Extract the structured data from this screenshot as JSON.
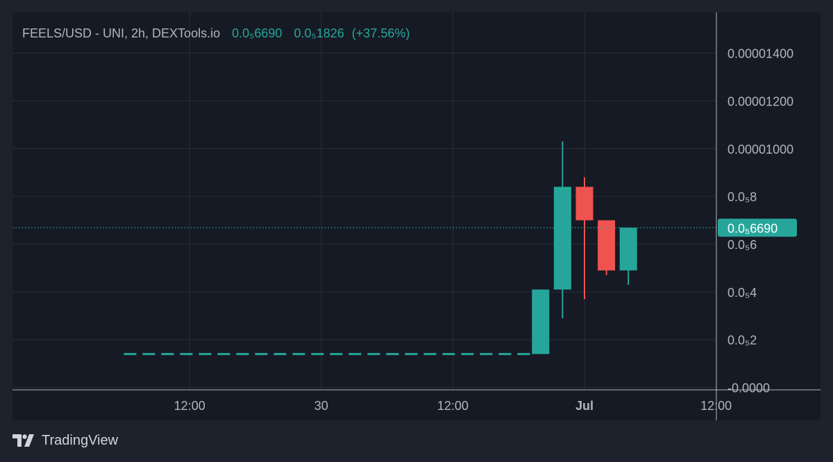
{
  "header": {
    "symbol": "FEELS/USD - UNI, 2h, DEXTools.io",
    "last_price": "0.0₅6690",
    "change_abs": "0.0₅1826",
    "change_pct": "(+37.56%)"
  },
  "brand": {
    "label": "TradingView"
  },
  "colors": {
    "background": "#1e222d",
    "plot_background": "#161a25",
    "grid": "#2a2e39",
    "text": "#b2b5be",
    "up": "#26a69a",
    "down": "#ef5350",
    "axis_border": "#b2b5be"
  },
  "chart_data": {
    "type": "candlestick",
    "interval": "2h",
    "y_range": [
      -1e-07,
      1.57e-05
    ],
    "y_ticks": [
      {
        "value": 1.4e-05,
        "label": "0.00001400"
      },
      {
        "value": 1.2e-05,
        "label": "0.00001200"
      },
      {
        "value": 1e-05,
        "label": "0.00001000"
      },
      {
        "value": 8e-06,
        "label": "0.0₅8"
      },
      {
        "value": 6e-06,
        "label": "0.0₅6"
      },
      {
        "value": 4e-06,
        "label": "0.0₅4"
      },
      {
        "value": 2e-06,
        "label": "0.0₅2"
      },
      {
        "value": 0,
        "label": "-0.0000"
      }
    ],
    "x_ticks": [
      {
        "bar": -26,
        "label": "12:00",
        "bold": false
      },
      {
        "bar": -14,
        "label": "30",
        "bold": false
      },
      {
        "bar": -2,
        "label": "12:00",
        "bold": false
      },
      {
        "bar": 10,
        "label": "Jul",
        "bold": true
      },
      {
        "bar": 22,
        "label": "12:00",
        "bold": false
      }
    ],
    "flat_line": {
      "from_bar": -32,
      "to_bar": 5.5,
      "value": 1.4e-06
    },
    "candles": [
      {
        "bar": 6,
        "open": 1.4e-06,
        "high": 4.1e-06,
        "low": 1.4e-06,
        "close": 4.1e-06
      },
      {
        "bar": 8,
        "open": 4.1e-06,
        "high": 1.03e-05,
        "low": 2.9e-06,
        "close": 8.4e-06
      },
      {
        "bar": 10,
        "open": 8.4e-06,
        "high": 8.8e-06,
        "low": 3.7e-06,
        "close": 7e-06
      },
      {
        "bar": 12,
        "open": 7e-06,
        "high": 7e-06,
        "low": 4.7e-06,
        "close": 4.9e-06
      },
      {
        "bar": 14,
        "open": 4.9e-06,
        "high": 6.7e-06,
        "low": 4.3e-06,
        "close": 6.689e-06
      }
    ],
    "last_value": 6.689e-06,
    "last_label": "0.0₅6690"
  }
}
